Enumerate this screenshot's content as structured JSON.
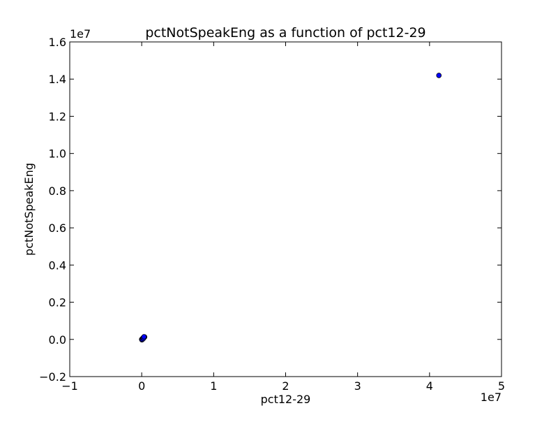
{
  "chart_data": {
    "type": "scatter",
    "title": "pctNotSpeakEng as a function of pct12-29",
    "xlabel": "pct12-29",
    "ylabel": "pctNotSpeakEng",
    "x_offset_label": "1e7",
    "y_offset_label": "1e7",
    "xlim": [
      -10000000,
      50000000
    ],
    "ylim": [
      -2000000,
      16000000
    ],
    "x_ticks": [
      {
        "value": -10000000,
        "label": "−1"
      },
      {
        "value": 0,
        "label": "0"
      },
      {
        "value": 10000000,
        "label": "1"
      },
      {
        "value": 20000000,
        "label": "2"
      },
      {
        "value": 30000000,
        "label": "3"
      },
      {
        "value": 40000000,
        "label": "4"
      },
      {
        "value": 50000000,
        "label": "5"
      }
    ],
    "y_ticks": [
      {
        "value": -2000000,
        "label": "−0.2"
      },
      {
        "value": 0,
        "label": "0.0"
      },
      {
        "value": 2000000,
        "label": "0.2"
      },
      {
        "value": 4000000,
        "label": "0.4"
      },
      {
        "value": 6000000,
        "label": "0.6"
      },
      {
        "value": 8000000,
        "label": "0.8"
      },
      {
        "value": 10000000,
        "label": "1.0"
      },
      {
        "value": 12000000,
        "label": "1.2"
      },
      {
        "value": 14000000,
        "label": "1.4"
      },
      {
        "value": 16000000,
        "label": "1.6"
      }
    ],
    "grid": false,
    "marker_color": "#0000ff",
    "marker_edge_color": "#000000",
    "points": [
      {
        "x": 41300000,
        "y": 14200000
      },
      {
        "x": 0,
        "y": 0
      },
      {
        "x": 50000,
        "y": 20000
      },
      {
        "x": 100000,
        "y": 30000
      },
      {
        "x": 150000,
        "y": 50000
      },
      {
        "x": 200000,
        "y": 70000
      },
      {
        "x": 250000,
        "y": 90000
      },
      {
        "x": 300000,
        "y": 110000
      },
      {
        "x": 350000,
        "y": 120000
      },
      {
        "x": 400000,
        "y": 130000
      },
      {
        "x": 30000,
        "y": -20000
      },
      {
        "x": 120000,
        "y": 10000
      },
      {
        "x": 180000,
        "y": 80000
      },
      {
        "x": 260000,
        "y": 60000
      },
      {
        "x": 320000,
        "y": 140000
      }
    ]
  }
}
